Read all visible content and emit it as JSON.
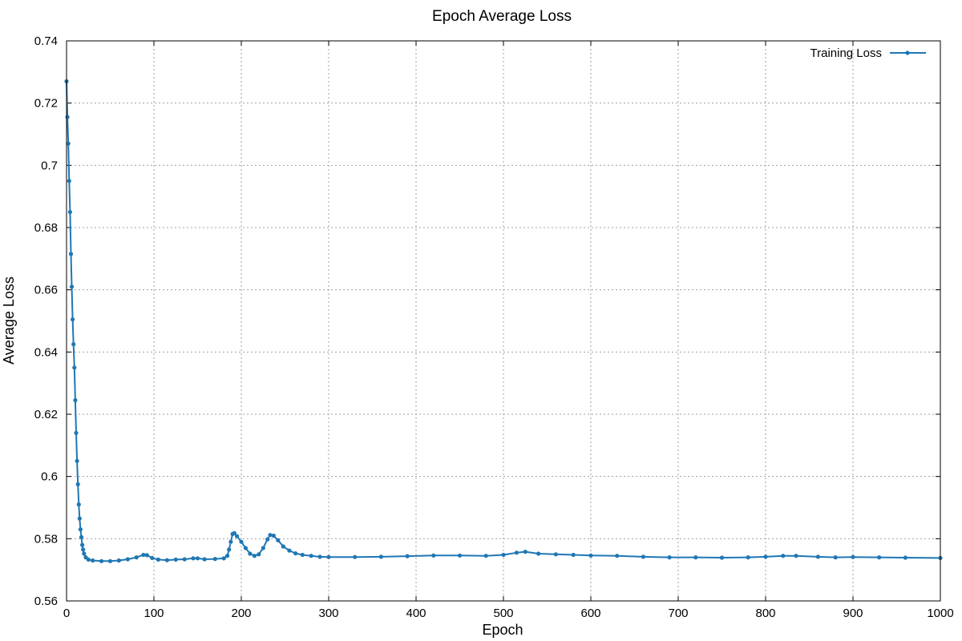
{
  "chart_data": {
    "type": "line",
    "title": "Epoch Average Loss",
    "xlabel": "Epoch",
    "ylabel": "Average Loss",
    "xlim": [
      0,
      1000
    ],
    "ylim": [
      0.56,
      0.74
    ],
    "x_ticks": [
      "0",
      "100",
      "200",
      "300",
      "400",
      "500",
      "600",
      "700",
      "800",
      "900",
      "1000"
    ],
    "y_ticks": [
      "0.56",
      "0.58",
      "0.6",
      "0.62",
      "0.64",
      "0.66",
      "0.68",
      "0.7",
      "0.72",
      "0.74"
    ],
    "grid": true,
    "legend_position": "top-right",
    "series": [
      {
        "name": "Training Loss",
        "color": "#1f77b4",
        "marker": "circle",
        "points": [
          [
            0,
            0.727
          ],
          [
            1,
            0.7155
          ],
          [
            2,
            0.707
          ],
          [
            3,
            0.695
          ],
          [
            4,
            0.685
          ],
          [
            5,
            0.6715
          ],
          [
            6,
            0.661
          ],
          [
            7,
            0.6505
          ],
          [
            8,
            0.6425
          ],
          [
            9,
            0.635
          ],
          [
            10,
            0.6245
          ],
          [
            11,
            0.614
          ],
          [
            12,
            0.605
          ],
          [
            13,
            0.5975
          ],
          [
            14,
            0.591
          ],
          [
            15,
            0.5865
          ],
          [
            16,
            0.583
          ],
          [
            17,
            0.5805
          ],
          [
            18,
            0.578
          ],
          [
            19,
            0.5765
          ],
          [
            20,
            0.5752
          ],
          [
            22,
            0.574
          ],
          [
            25,
            0.5733
          ],
          [
            30,
            0.573
          ],
          [
            40,
            0.5728
          ],
          [
            50,
            0.5728
          ],
          [
            60,
            0.573
          ],
          [
            70,
            0.5734
          ],
          [
            80,
            0.574
          ],
          [
            88,
            0.5748
          ],
          [
            92,
            0.5747
          ],
          [
            98,
            0.5738
          ],
          [
            105,
            0.5733
          ],
          [
            115,
            0.5731
          ],
          [
            125,
            0.5733
          ],
          [
            135,
            0.5734
          ],
          [
            145,
            0.5737
          ],
          [
            150,
            0.5737
          ],
          [
            158,
            0.5734
          ],
          [
            170,
            0.5735
          ],
          [
            180,
            0.5737
          ],
          [
            184,
            0.5745
          ],
          [
            186,
            0.5765
          ],
          [
            188,
            0.579
          ],
          [
            190,
            0.5815
          ],
          [
            192,
            0.5818
          ],
          [
            195,
            0.5808
          ],
          [
            200,
            0.579
          ],
          [
            205,
            0.577
          ],
          [
            210,
            0.5752
          ],
          [
            215,
            0.5745
          ],
          [
            220,
            0.575
          ],
          [
            225,
            0.577
          ],
          [
            230,
            0.5798
          ],
          [
            233,
            0.5812
          ],
          [
            237,
            0.581
          ],
          [
            242,
            0.5795
          ],
          [
            248,
            0.5775
          ],
          [
            255,
            0.5762
          ],
          [
            262,
            0.5753
          ],
          [
            270,
            0.5748
          ],
          [
            280,
            0.5745
          ],
          [
            290,
            0.5742
          ],
          [
            300,
            0.5741
          ],
          [
            330,
            0.5741
          ],
          [
            360,
            0.5742
          ],
          [
            390,
            0.5744
          ],
          [
            420,
            0.5746
          ],
          [
            450,
            0.5746
          ],
          [
            480,
            0.5745
          ],
          [
            500,
            0.5748
          ],
          [
            515,
            0.5755
          ],
          [
            525,
            0.5758
          ],
          [
            540,
            0.5752
          ],
          [
            560,
            0.575
          ],
          [
            580,
            0.5748
          ],
          [
            600,
            0.5746
          ],
          [
            630,
            0.5745
          ],
          [
            660,
            0.5742
          ],
          [
            690,
            0.574
          ],
          [
            720,
            0.574
          ],
          [
            750,
            0.5739
          ],
          [
            780,
            0.574
          ],
          [
            800,
            0.5742
          ],
          [
            820,
            0.5745
          ],
          [
            835,
            0.5745
          ],
          [
            860,
            0.5742
          ],
          [
            880,
            0.574
          ],
          [
            900,
            0.5741
          ],
          [
            930,
            0.574
          ],
          [
            960,
            0.5739
          ],
          [
            1000,
            0.5738
          ]
        ]
      }
    ]
  }
}
